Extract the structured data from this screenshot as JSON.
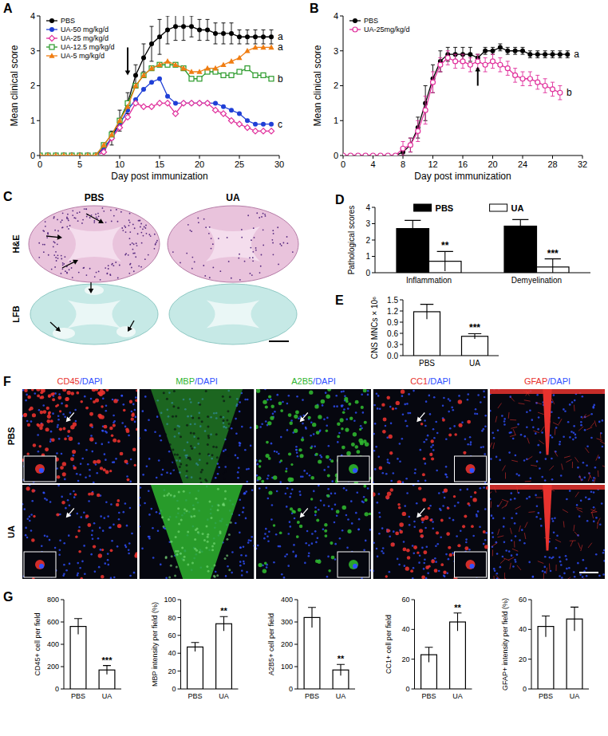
{
  "chart_data": [
    {
      "type": "line",
      "panel_label": "A",
      "x_label": "Day post immunization",
      "y_label": "Mean clinical score",
      "xlim": [
        0,
        30
      ],
      "ylim": [
        0,
        4
      ],
      "xticks": [
        0,
        5,
        10,
        15,
        20,
        25,
        30
      ],
      "yticks": [
        0,
        1,
        2,
        3,
        4
      ],
      "legend": "upper left",
      "arrow": {
        "x": 11,
        "y_from": 3.1,
        "y_to": 2.3
      },
      "x": [
        0,
        1,
        2,
        3,
        4,
        5,
        6,
        7,
        8,
        9,
        10,
        11,
        12,
        13,
        14,
        15,
        16,
        17,
        18,
        19,
        20,
        21,
        22,
        23,
        24,
        25,
        26,
        27,
        28,
        29
      ],
      "series": [
        {
          "name": "PBS",
          "color": "#000000",
          "marker": "circle",
          "end_label": "a",
          "values": [
            0,
            0,
            0,
            0,
            0,
            0,
            0,
            0,
            0.2,
            0.5,
            1.0,
            1.5,
            2.3,
            2.8,
            3.2,
            3.4,
            3.6,
            3.7,
            3.7,
            3.7,
            3.6,
            3.6,
            3.5,
            3.5,
            3.5,
            3.4,
            3.4,
            3.4,
            3.4,
            3.4
          ],
          "errors": [
            0,
            0,
            0,
            0,
            0,
            0,
            0,
            0,
            0.1,
            0.2,
            0.3,
            0.3,
            0.3,
            0.4,
            0.5,
            0.5,
            0.4,
            0.4,
            0.4,
            0.3,
            0.3,
            0.3,
            0.3,
            0.3,
            0.3,
            0.2,
            0.2,
            0.2,
            0.2,
            0.2
          ]
        },
        {
          "name": "UA-50 mg/kg/d",
          "color": "#1f3fd6",
          "marker": "circle",
          "end_label": "c",
          "values": [
            0,
            0,
            0,
            0,
            0,
            0,
            0,
            0,
            0.2,
            0.5,
            0.9,
            1.3,
            1.6,
            1.9,
            2.1,
            2.2,
            1.7,
            1.5,
            1.5,
            1.5,
            1.5,
            1.5,
            1.5,
            1.4,
            1.3,
            1.2,
            1.0,
            0.9,
            0.9,
            0.9
          ]
        },
        {
          "name": "UA-25 mg/kg/d",
          "color": "#e0309c",
          "marker": "diamond_open",
          "values": [
            0,
            0,
            0,
            0,
            0,
            0,
            0,
            0,
            0.1,
            0.5,
            0.8,
            1.1,
            1.5,
            1.4,
            1.4,
            1.5,
            1.5,
            1.2,
            1.5,
            1.5,
            1.5,
            1.5,
            1.3,
            1.2,
            1.0,
            0.9,
            0.8,
            0.7,
            0.7,
            0.7
          ]
        },
        {
          "name": "UA-12.5 mg/kg/d",
          "color": "#2a9a2a",
          "marker": "square_open",
          "end_label": "b",
          "values": [
            0,
            0,
            0,
            0,
            0,
            0,
            0,
            0,
            0.3,
            0.6,
            1.0,
            1.5,
            2.0,
            2.3,
            2.5,
            2.6,
            2.6,
            2.6,
            2.5,
            2.2,
            2.2,
            2.4,
            2.4,
            2.3,
            2.3,
            2.4,
            2.5,
            2.3,
            2.3,
            2.2
          ]
        },
        {
          "name": "UA-5 mg/kg/d",
          "color": "#f07d12",
          "marker": "triangle",
          "end_label": "a",
          "values": [
            0,
            0,
            0,
            0,
            0,
            0,
            0,
            0,
            0.3,
            0.6,
            1.0,
            1.4,
            2.0,
            2.3,
            2.5,
            2.6,
            2.7,
            2.6,
            2.5,
            2.4,
            2.4,
            2.5,
            2.5,
            2.6,
            2.7,
            2.8,
            3.0,
            3.1,
            3.1,
            3.1
          ]
        }
      ]
    },
    {
      "type": "line",
      "panel_label": "B",
      "x_label": "Day post immunization",
      "y_label": "Mean clinical score",
      "xlim": [
        0,
        32
      ],
      "ylim": [
        0,
        4
      ],
      "xticks": [
        0,
        4,
        8,
        12,
        16,
        20,
        24,
        28,
        32
      ],
      "yticks": [
        0,
        1,
        2,
        3,
        4
      ],
      "legend": "upper left",
      "arrow": {
        "x": 18,
        "y_from": 2.0,
        "y_to": 2.55
      },
      "x": [
        0,
        1,
        2,
        3,
        4,
        5,
        6,
        7,
        8,
        9,
        10,
        11,
        12,
        13,
        14,
        15,
        16,
        17,
        18,
        19,
        20,
        21,
        22,
        23,
        24,
        25,
        26,
        27,
        28,
        29,
        30
      ],
      "series": [
        {
          "name": "PBS",
          "color": "#000000",
          "marker": "circle",
          "end_label": "a",
          "values": [
            0,
            0,
            0,
            0,
            0,
            0,
            0,
            0,
            0.1,
            0.3,
            0.8,
            1.5,
            2.2,
            2.7,
            2.9,
            2.9,
            2.9,
            2.9,
            2.8,
            3.0,
            3.0,
            3.1,
            3.0,
            3.0,
            3.0,
            2.9,
            2.9,
            2.9,
            2.9,
            2.9,
            2.9
          ],
          "errors": [
            0,
            0,
            0,
            0,
            0,
            0,
            0,
            0,
            0.1,
            0.2,
            0.3,
            0.5,
            0.4,
            0.3,
            0.2,
            0.2,
            0.2,
            0.2,
            0.1,
            0.1,
            0.1,
            0.1,
            0.1,
            0.1,
            0.1,
            0.1,
            0.1,
            0.1,
            0.1,
            0.1,
            0.1
          ]
        },
        {
          "name": "UA-25mg/kg/d",
          "color": "#e0309c",
          "marker": "circle_open",
          "end_label": "b",
          "values": [
            0,
            0,
            0,
            0,
            0,
            0,
            0,
            0,
            0.2,
            0.3,
            0.7,
            1.3,
            2.1,
            2.6,
            2.8,
            2.7,
            2.7,
            2.6,
            2.7,
            2.6,
            2.7,
            2.6,
            2.5,
            2.3,
            2.2,
            2.2,
            2.1,
            2.0,
            1.9,
            1.8,
            null
          ],
          "errors": [
            0,
            0,
            0,
            0,
            0,
            0,
            0,
            0,
            0.2,
            0.2,
            0.3,
            0.4,
            0.3,
            0.2,
            0.2,
            0.2,
            0.2,
            0.2,
            0.2,
            0.2,
            0.2,
            0.2,
            0.2,
            0.2,
            0.2,
            0.2,
            0.2,
            0.2,
            0.2,
            0.2,
            null
          ]
        }
      ]
    },
    {
      "type": "image_grid",
      "panel_label": "C",
      "columns": [
        "PBS",
        "UA"
      ],
      "rows": [
        "H&E",
        "LFB"
      ]
    },
    {
      "type": "bar",
      "panel_label": "D",
      "y_label": "Pathological scores",
      "categories": [
        "Inflammation",
        "Demyelination"
      ],
      "ylim": [
        0,
        4
      ],
      "yticks": [
        0,
        1,
        2,
        3,
        4
      ],
      "legend": "top",
      "series": [
        {
          "name": "PBS",
          "color": "#000000",
          "values": [
            2.7,
            2.85
          ],
          "errors": [
            0.5,
            0.4
          ]
        },
        {
          "name": "UA",
          "color": "#ffffff",
          "values": [
            0.7,
            0.35
          ],
          "errors": [
            0.6,
            0.5
          ],
          "significance": [
            "**",
            "***"
          ]
        }
      ]
    },
    {
      "type": "bar",
      "panel_label": "E",
      "y_label": "CNS MNCs × 10⁶",
      "categories": [
        "PBS",
        "UA"
      ],
      "values": [
        1.18,
        0.52
      ],
      "errors": [
        0.2,
        0.07
      ],
      "colors": [
        "#ffffff",
        "#ffffff"
      ],
      "significance": [
        null,
        "***"
      ],
      "ylim": [
        0,
        1.5
      ],
      "yticks": [
        {
          "value": 0,
          "label": "0.0"
        },
        0.3,
        0.6,
        0.9,
        1.2,
        1.5
      ]
    },
    {
      "type": "image_grid",
      "panel_label": "F",
      "rows": [
        "PBS",
        "UA"
      ],
      "columns": [
        {
          "title": "CD45/DAPI",
          "colors": [
            "#e8322e",
            "#3050ff"
          ]
        },
        {
          "title": "MBP/DAPI",
          "colors": [
            "#2fb52f",
            "#3050ff"
          ]
        },
        {
          "title": "A2B5/DAPI",
          "colors": [
            "#2fb52f",
            "#3050ff"
          ]
        },
        {
          "title": "CC1/DAPI",
          "colors": [
            "#e8322e",
            "#3050ff"
          ]
        },
        {
          "title": "GFAP/DAPI",
          "colors": [
            "#e8322e",
            "#3050ff"
          ]
        }
      ]
    },
    {
      "type": "bar",
      "panel_label": "G",
      "y_label": "CD45+ cell per field",
      "categories": [
        "PBS",
        "UA"
      ],
      "values": [
        560,
        170
      ],
      "errors": [
        70,
        40
      ],
      "colors": [
        "#ffffff",
        "#ffffff"
      ],
      "significance": [
        null,
        "***"
      ],
      "ylim": [
        0,
        800
      ],
      "yticks": [
        0,
        200,
        400,
        600,
        800
      ]
    },
    {
      "type": "bar",
      "y_label": "MBP intensity per field (%)",
      "categories": [
        "PBS",
        "UA"
      ],
      "values": [
        47,
        73
      ],
      "errors": [
        5,
        8
      ],
      "colors": [
        "#ffffff",
        "#ffffff"
      ],
      "significance": [
        null,
        "**"
      ],
      "ylim": [
        0,
        100
      ],
      "yticks": [
        0,
        20,
        40,
        60,
        80,
        100
      ]
    },
    {
      "type": "bar",
      "y_label": "A2B5+ cell per field",
      "categories": [
        "PBS",
        "UA"
      ],
      "values": [
        320,
        85
      ],
      "errors": [
        45,
        25
      ],
      "colors": [
        "#ffffff",
        "#ffffff"
      ],
      "significance": [
        null,
        "**"
      ],
      "ylim": [
        0,
        400
      ],
      "yticks": [
        0,
        100,
        200,
        300,
        400
      ]
    },
    {
      "type": "bar",
      "y_label": "CC1+ cell per field",
      "categories": [
        "PBS",
        "UA"
      ],
      "values": [
        23,
        45
      ],
      "errors": [
        5,
        6
      ],
      "colors": [
        "#ffffff",
        "#ffffff"
      ],
      "significance": [
        null,
        "**"
      ],
      "ylim": [
        0,
        60
      ],
      "yticks": [
        0,
        20,
        40,
        60
      ]
    },
    {
      "type": "bar",
      "y_label": "GFAP+ intensity per field (%)",
      "categories": [
        "PBS",
        "UA"
      ],
      "values": [
        42,
        47
      ],
      "errors": [
        7,
        8
      ],
      "colors": [
        "#ffffff",
        "#ffffff"
      ],
      "ylim": [
        0,
        60
      ],
      "yticks": [
        0,
        20,
        40,
        60
      ]
    }
  ]
}
